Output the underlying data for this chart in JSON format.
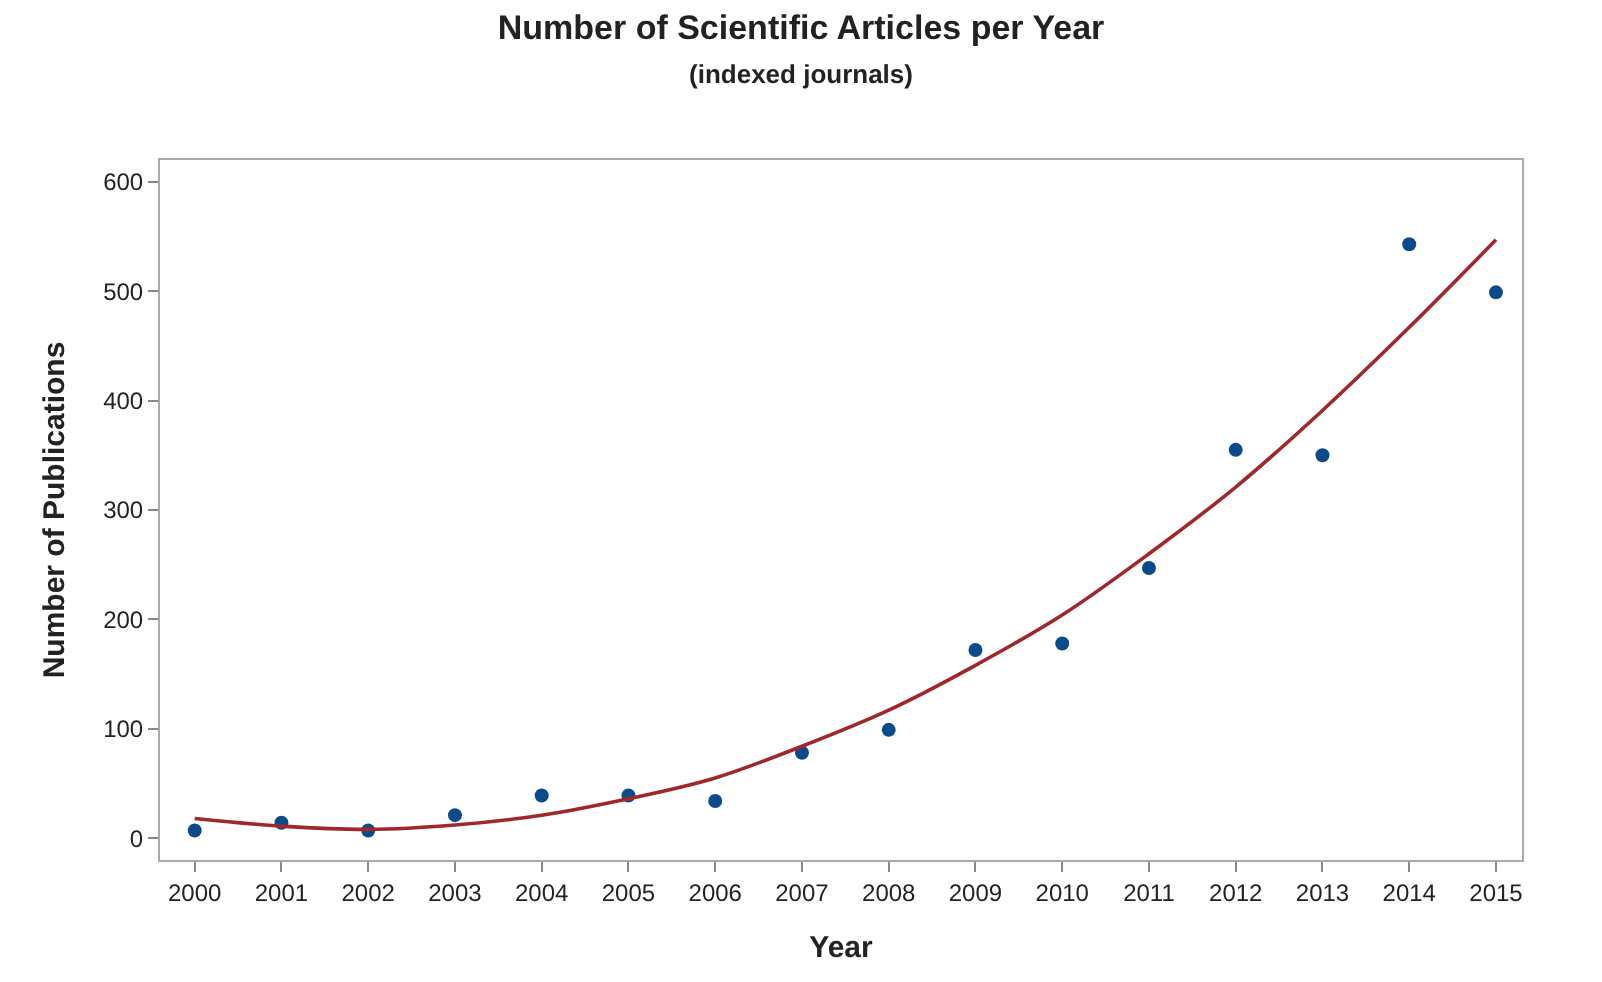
{
  "chart_data": {
    "type": "scatter",
    "title": "Number of Scientific Articles per Year",
    "subtitle": "(indexed journals)",
    "xlabel": "Year",
    "ylabel": "Number of Publications",
    "x": [
      2000,
      2001,
      2002,
      2003,
      2004,
      2005,
      2006,
      2007,
      2008,
      2009,
      2010,
      2011,
      2012,
      2013,
      2014,
      2015
    ],
    "series": [
      {
        "color": "#0b4a8b",
        "marker": "circle",
        "values": [
          7,
          14,
          7,
          21,
          39,
          39,
          34,
          78,
          99,
          172,
          178,
          247,
          355,
          350,
          543,
          499
        ]
      },
      {
        "type": "line",
        "color": "#a0282a",
        "line_style": "solid",
        "marker": "none",
        "values": [
          18,
          11,
          8,
          12,
          21,
          36,
          55,
          84,
          117,
          158,
          204,
          260,
          321,
          391,
          467,
          547
        ]
      }
    ],
    "xlim": [
      1999.6,
      2015.3
    ],
    "xticks": [
      2000,
      2001,
      2002,
      2003,
      2004,
      2005,
      2006,
      2007,
      2008,
      2009,
      2010,
      2011,
      2012,
      2013,
      2014,
      2015
    ],
    "ylim": [
      -20,
      620
    ],
    "yticks": [
      0,
      100,
      200,
      300,
      400,
      500,
      600
    ]
  }
}
